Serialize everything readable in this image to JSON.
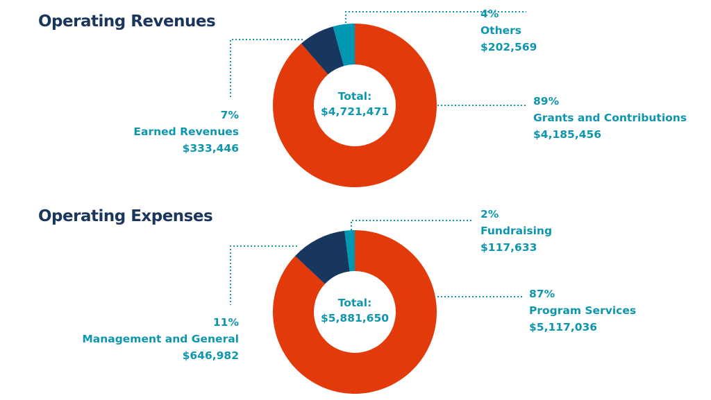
{
  "chart_data": [
    {
      "type": "pie",
      "donut": true,
      "title": "Operating Revenues",
      "center_label": "Total:",
      "total": "$4,721,471",
      "slices": [
        {
          "name": "Grants and Contributions",
          "percent": "89%",
          "value": "$4,185,456",
          "amount": 4185456,
          "color": "#E33A0B"
        },
        {
          "name": "Earned Revenues",
          "percent": "7%",
          "value": "$333,446",
          "amount": 333446,
          "color": "#17375E"
        },
        {
          "name": "Others",
          "percent": "4%",
          "value": "$202,569",
          "amount": 202569,
          "color": "#0097B2"
        }
      ]
    },
    {
      "type": "pie",
      "donut": true,
      "title": "Operating Expenses",
      "center_label": "Total:",
      "total": "$5,881,650",
      "slices": [
        {
          "name": "Program Services",
          "percent": "87%",
          "value": "$5,117,036",
          "amount": 5117036,
          "color": "#E33A0B"
        },
        {
          "name": "Management and General",
          "percent": "11%",
          "value": "$646,982",
          "amount": 646982,
          "color": "#17375E"
        },
        {
          "name": "Fundraising",
          "percent": "2%",
          "value": "$117,633",
          "amount": 117633,
          "color": "#0097B2"
        }
      ]
    }
  ]
}
